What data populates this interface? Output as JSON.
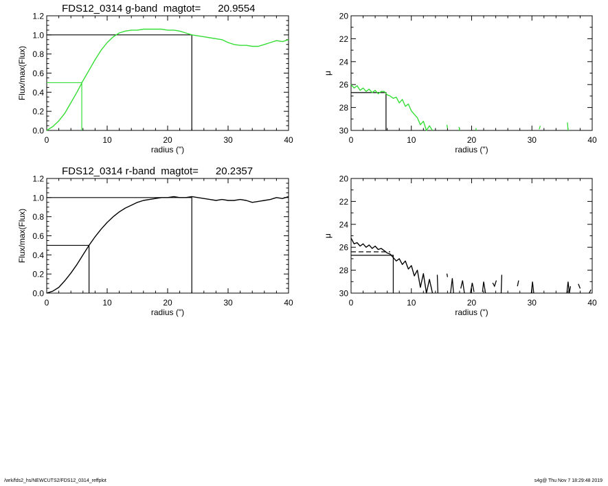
{
  "footer": {
    "path": "/wrk/fds2_hs/NEWCUTS2/FDS12_0314_reffplot",
    "stamp": "s4g@  Thu Nov  7 18:29:48 2019"
  },
  "colors": {
    "g_band": "#33dd33",
    "r_band": "#000000",
    "axes": "#000000"
  },
  "chart_data": [
    {
      "id": "g-growth",
      "type": "line",
      "title": "FDS12_0314 g-band  magtot=      20.9554",
      "xlabel": "radius (\")",
      "ylabel": "Flux/max(Flux)",
      "xlim": [
        0,
        40
      ],
      "ylim": [
        0,
        1.2
      ],
      "x_ticks": [
        "0",
        "10",
        "20",
        "30",
        "40"
      ],
      "y_ticks": [
        "0.0",
        "0.2",
        "0.4",
        "0.6",
        "0.8",
        "1.0",
        "1.2"
      ],
      "y_reversed": false,
      "color": "#33dd33",
      "series": [
        {
          "x": [
            0,
            1,
            2,
            3,
            4,
            5,
            6,
            7,
            8,
            9,
            10,
            11,
            12,
            13,
            14,
            15,
            16,
            17,
            18,
            19,
            20,
            21,
            22,
            23,
            24,
            25,
            26,
            27,
            28,
            29,
            30,
            31,
            32,
            33,
            34,
            35,
            36,
            37,
            38,
            39,
            40
          ],
          "y": [
            0.0,
            0.04,
            0.1,
            0.18,
            0.29,
            0.4,
            0.52,
            0.63,
            0.74,
            0.84,
            0.92,
            0.98,
            1.02,
            1.04,
            1.05,
            1.05,
            1.06,
            1.06,
            1.06,
            1.06,
            1.05,
            1.05,
            1.04,
            1.02,
            1.0,
            0.99,
            0.98,
            0.97,
            0.96,
            0.95,
            0.92,
            0.9,
            0.89,
            0.89,
            0.88,
            0.88,
            0.9,
            0.92,
            0.94,
            0.93,
            0.95
          ]
        }
      ],
      "ref_lines": [
        {
          "x": 5.8,
          "y": 0.5,
          "color": "#33dd33"
        },
        {
          "x": 24.0,
          "y": 1.0,
          "color": "#000000"
        }
      ]
    },
    {
      "id": "g-profile",
      "type": "line",
      "title": "",
      "xlabel": "radius (\")",
      "ylabel": "μ",
      "xlim": [
        0,
        40
      ],
      "ylim": [
        20,
        30
      ],
      "x_ticks": [
        "0",
        "10",
        "20",
        "30",
        "40"
      ],
      "y_ticks": [
        "20",
        "22",
        "24",
        "26",
        "28",
        "30"
      ],
      "y_reversed": true,
      "color": "#33dd33",
      "series": [
        {
          "x": [
            0,
            0.5,
            1,
            1.5,
            2,
            2.5,
            3,
            3.5,
            4,
            4.5,
            5,
            5.5,
            6,
            6.5,
            7,
            7.5,
            8,
            8.5,
            9,
            9.5,
            10,
            10.5,
            11,
            11.5,
            12,
            12.5,
            13,
            13.5
          ],
          "y": [
            26.0,
            26.3,
            26.1,
            26.5,
            26.3,
            26.6,
            26.4,
            26.7,
            26.5,
            26.8,
            26.6,
            26.6,
            26.9,
            27.0,
            27.2,
            27.1,
            27.6,
            27.3,
            27.9,
            27.7,
            28.3,
            28.6,
            28.9,
            29.5,
            29.2,
            30.0,
            29.6,
            30.0
          ]
        }
      ],
      "segments": [
        {
          "x": [
            15.9,
            16.0
          ],
          "y": [
            29.5,
            29.8
          ]
        },
        {
          "x": [
            17.9,
            18.0
          ],
          "y": [
            29.7,
            30.0
          ]
        },
        {
          "x": [
            20.7,
            20.8
          ],
          "y": [
            29.8,
            30.0
          ]
        },
        {
          "x": [
            31.2,
            31.4
          ],
          "y": [
            29.9,
            29.6
          ]
        },
        {
          "x": [
            35.9,
            36.0
          ],
          "y": [
            29.3,
            30.0
          ]
        }
      ],
      "ref_lines": [
        {
          "x": 5.8,
          "y": 26.7,
          "color": "#000000"
        }
      ]
    },
    {
      "id": "r-growth",
      "type": "line",
      "title": "FDS12_0314 r-band  magtot=      20.2357",
      "xlabel": "radius (\")",
      "ylabel": "Flux/max(Flux)",
      "xlim": [
        0,
        40
      ],
      "ylim": [
        0,
        1.2
      ],
      "x_ticks": [
        "0",
        "10",
        "20",
        "30",
        "40"
      ],
      "y_ticks": [
        "0.0",
        "0.2",
        "0.4",
        "0.6",
        "0.8",
        "1.0",
        "1.2"
      ],
      "y_reversed": false,
      "color": "#000000",
      "series": [
        {
          "x": [
            0,
            1,
            2,
            3,
            4,
            5,
            6,
            7,
            8,
            9,
            10,
            11,
            12,
            13,
            14,
            15,
            16,
            17,
            18,
            19,
            20,
            21,
            22,
            23,
            24,
            25,
            26,
            27,
            28,
            29,
            30,
            31,
            32,
            33,
            34,
            35,
            36,
            37,
            38,
            39,
            40
          ],
          "y": [
            0.0,
            0.02,
            0.06,
            0.13,
            0.21,
            0.3,
            0.4,
            0.5,
            0.59,
            0.67,
            0.74,
            0.8,
            0.85,
            0.89,
            0.92,
            0.95,
            0.97,
            0.98,
            0.99,
            1.0,
            1.0,
            1.01,
            1.0,
            1.0,
            1.01,
            1.0,
            0.99,
            0.98,
            0.97,
            0.98,
            0.97,
            0.97,
            0.98,
            0.97,
            0.95,
            0.96,
            0.97,
            0.98,
            1.0,
            0.99,
            1.01
          ]
        }
      ],
      "ref_lines": [
        {
          "x": 7.0,
          "y": 0.5,
          "color": "#000000"
        },
        {
          "x": 24.0,
          "y": 1.0,
          "color": "#000000"
        }
      ]
    },
    {
      "id": "r-profile",
      "type": "line",
      "title": "",
      "xlabel": "radius (\")",
      "ylabel": "μ",
      "xlim": [
        0,
        40
      ],
      "ylim": [
        20,
        30
      ],
      "x_ticks": [
        "0",
        "10",
        "20",
        "30",
        "40"
      ],
      "y_ticks": [
        "20",
        "22",
        "24",
        "26",
        "28",
        "30"
      ],
      "y_reversed": true,
      "color": "#000000",
      "series": [
        {
          "x": [
            0,
            0.5,
            1,
            1.5,
            2,
            2.5,
            3,
            3.5,
            4,
            4.5,
            5,
            5.5,
            6,
            6.5,
            7,
            7.5,
            8,
            8.5,
            9,
            9.5,
            10,
            10.5,
            11,
            11.5,
            12,
            12.5,
            13,
            13.5
          ],
          "y": [
            25.2,
            25.7,
            25.6,
            25.9,
            25.7,
            26.0,
            25.8,
            26.1,
            25.9,
            26.2,
            26.1,
            26.3,
            26.5,
            26.6,
            26.9,
            27.2,
            27.0,
            27.5,
            27.2,
            27.9,
            27.6,
            28.5,
            28.0,
            29.5,
            28.3,
            30.0,
            28.8,
            30.0
          ]
        }
      ],
      "segments": [
        {
          "x": [
            14.3,
            14.4
          ],
          "y": [
            28.4,
            30.0
          ]
        },
        {
          "x": [
            15.9,
            16.0
          ],
          "y": [
            28.3,
            28.6
          ]
        },
        {
          "x": [
            16.5,
            16.8,
            17.0
          ],
          "y": [
            30.0,
            28.7,
            30.0
          ]
        },
        {
          "x": [
            18.2,
            18.5,
            18.8
          ],
          "y": [
            29.6,
            28.9,
            30.0
          ]
        },
        {
          "x": [
            19.8,
            20.1,
            20.4
          ],
          "y": [
            30.0,
            29.1,
            29.9
          ]
        },
        {
          "x": [
            21.8,
            22.0,
            22.3
          ],
          "y": [
            29.9,
            29.0,
            30.0
          ]
        },
        {
          "x": [
            23.5,
            23.8,
            24.1
          ],
          "y": [
            29.1,
            29.4,
            28.9
          ]
        },
        {
          "x": [
            24.9,
            25.0
          ],
          "y": [
            30.0,
            28.4
          ]
        },
        {
          "x": [
            27.6,
            27.8
          ],
          "y": [
            29.4,
            28.9
          ]
        },
        {
          "x": [
            29.9,
            30.1,
            30.3
          ],
          "y": [
            30.0,
            29.0,
            30.0
          ]
        },
        {
          "x": [
            35.8,
            36.0,
            36.2,
            36.4
          ],
          "y": [
            30.0,
            29.0,
            30.0,
            29.4
          ]
        },
        {
          "x": [
            37.7,
            38.0
          ],
          "y": [
            29.2,
            29.6
          ]
        },
        {
          "x": [
            39.5,
            39.8
          ],
          "y": [
            30.0,
            29.7
          ]
        }
      ],
      "ref_lines": [
        {
          "x": 7.0,
          "y": 26.7,
          "color": "#000000"
        }
      ],
      "dashed_level": 26.4
    }
  ]
}
